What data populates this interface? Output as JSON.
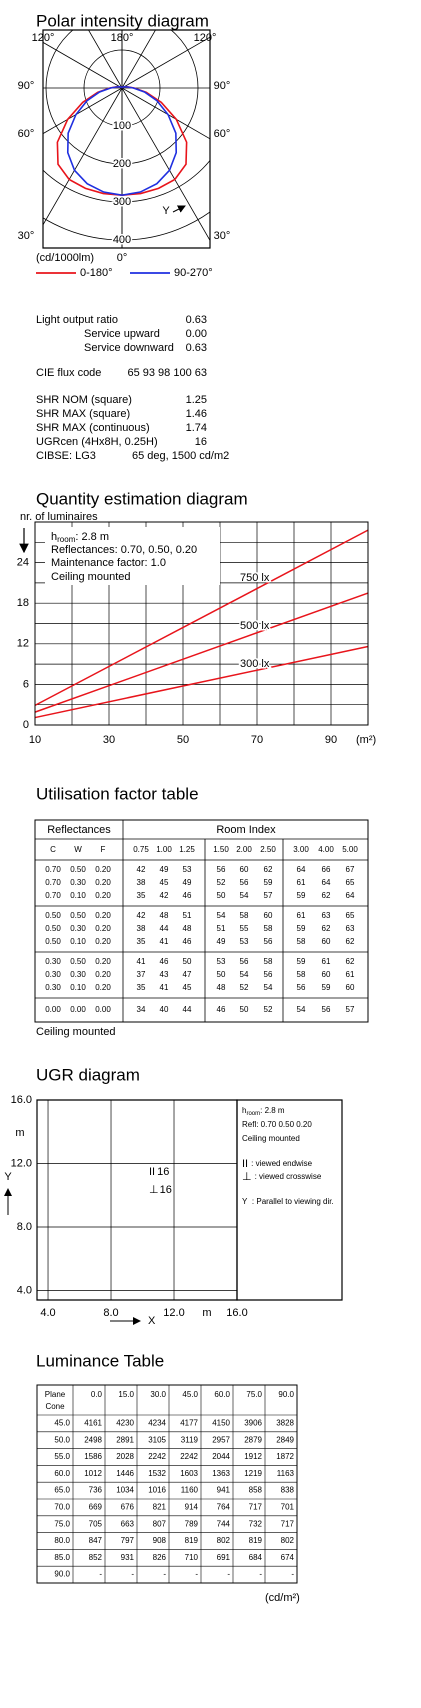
{
  "chart_data": [
    {
      "type": "polar",
      "title": "Polar intensity diagram",
      "angle_labels": [
        "120°",
        "180°",
        "120°",
        "90°",
        "90°",
        "60°",
        "60°",
        "30°",
        "30°",
        "0°"
      ],
      "unit": "(cd/1000lm)",
      "axis_marker": "Y",
      "rlim": [
        0,
        400
      ],
      "rticks": [
        100,
        200,
        300,
        400
      ],
      "angles": [
        0,
        10,
        20,
        30,
        40,
        50,
        60,
        70,
        80,
        90,
        100,
        110,
        120,
        130,
        140,
        150,
        160,
        170,
        180
      ],
      "series": [
        {
          "name": "0-180°",
          "color": "#e8141b",
          "values": [
            282,
            282,
            281,
            278,
            262,
            222,
            165,
            110,
            65,
            32,
            16,
            9,
            6,
            4,
            3,
            2,
            2,
            2,
            2
          ]
        },
        {
          "name": "90-270°",
          "color": "#1f2fe0",
          "values": [
            282,
            278,
            268,
            250,
            222,
            185,
            140,
            98,
            60,
            30,
            15,
            9,
            6,
            4,
            3,
            2,
            2,
            2,
            2
          ]
        }
      ]
    },
    {
      "type": "line",
      "title": "Quantity estimation diagram",
      "ylabel": "nr. of luminaires",
      "xunit": "(m²)",
      "room_height": {
        "symbol": "h",
        "subscript": "room",
        "text": ": 2.8 m"
      },
      "notes": [
        "Reflectances: 0.70, 0.50, 0.20",
        "Maintenance factor: 1.0",
        "Ceiling mounted"
      ],
      "x": [
        10,
        100
      ],
      "series": [
        {
          "name": "750 lx",
          "color": "#e8141b",
          "values": [
            2.9,
            28.8
          ]
        },
        {
          "name": "500 lx",
          "color": "#e8141b",
          "values": [
            1.9,
            19.5
          ]
        },
        {
          "name": "300 lx",
          "color": "#e8141b",
          "values": [
            1.1,
            11.6
          ]
        }
      ],
      "xlim": [
        10,
        100
      ],
      "xticks": [
        10,
        30,
        50,
        70,
        90
      ],
      "xgrid": [
        20,
        40,
        60,
        80,
        100
      ],
      "ylim": [
        0,
        30
      ],
      "yticks": [
        0,
        6,
        12,
        18,
        24
      ],
      "ygrid": [
        3,
        9,
        15,
        21,
        27,
        30
      ]
    },
    {
      "type": "grid",
      "title": "UGR diagram",
      "xlabel": "X",
      "ylabel": "Y",
      "xunit": "m",
      "yunit": "m",
      "xlim": [
        3.3,
        16
      ],
      "ylim": [
        3.4,
        16
      ],
      "xticks": [
        {
          "value": 4,
          "label": "4.0"
        },
        {
          "value": 8,
          "label": "8.0"
        },
        {
          "value": 12,
          "label": "12.0"
        },
        {
          "value": 16,
          "label": "16.0"
        }
      ],
      "yticks": [
        {
          "value": 16,
          "label": "16.0"
        },
        {
          "value": 12,
          "label": "12.0"
        },
        {
          "value": 8,
          "label": "8.0"
        },
        {
          "value": 4,
          "label": "4.0"
        }
      ],
      "values": [
        {
          "symbol": "II",
          "value": 16
        },
        {
          "symbol": "⊥",
          "value": 16
        }
      ],
      "room_height": {
        "symbol": "h",
        "subscript": "room",
        "text": ": 2.8 m"
      },
      "notes": [
        "Refl: 0.70 0.50 0.20",
        "Ceiling mounted"
      ],
      "legend": [
        {
          "symbol": "II",
          "text": ": viewed endwise"
        },
        {
          "symbol": "⊥",
          "text": ": viewed crosswise"
        },
        {
          "symbol": "Y",
          "text": ": Parallel to viewing dir."
        }
      ]
    }
  ],
  "specs": {
    "rows": [
      {
        "label": "Light output ratio",
        "value": "0.63"
      },
      {
        "label": "Service upward",
        "value": "0.00"
      },
      {
        "label": "Service downward",
        "value": "0.63"
      },
      {
        "label": "CIE flux code",
        "value": "65 93 98 100 63"
      },
      {
        "label": "SHR NOM (square)",
        "value": "1.25"
      },
      {
        "label": "SHR MAX (square)",
        "value": "1.46"
      },
      {
        "label": "SHR MAX (continuous)",
        "value": "1.74"
      },
      {
        "label": "UGRcen (4Hx8H, 0.25H)",
        "value": "16"
      },
      {
        "label": "CIBSE: LG3",
        "value": "65 deg, 1500 cd/m2"
      }
    ]
  },
  "utilisation_table": {
    "title": "Utilisation factor table",
    "reflectances_header": "Reflectances",
    "room_index_header": "Room Index",
    "reflectance_columns": [
      "C",
      "W",
      "F"
    ],
    "room_indices": [
      "0.75",
      "1.00",
      "1.25",
      "1.50",
      "2.00",
      "2.50",
      "3.00",
      "4.00",
      "5.00"
    ],
    "rows": [
      {
        "refl": [
          "0.70",
          "0.50",
          "0.20"
        ],
        "values": [
          42,
          49,
          53,
          56,
          60,
          62,
          64,
          66,
          67
        ]
      },
      {
        "refl": [
          "0.70",
          "0.30",
          "0.20"
        ],
        "values": [
          38,
          45,
          49,
          52,
          56,
          59,
          61,
          64,
          65
        ]
      },
      {
        "refl": [
          "0.70",
          "0.10",
          "0.20"
        ],
        "values": [
          35,
          42,
          46,
          50,
          54,
          57,
          59,
          62,
          64
        ]
      },
      {
        "refl": [
          "0.50",
          "0.50",
          "0.20"
        ],
        "values": [
          42,
          48,
          51,
          54,
          58,
          60,
          61,
          63,
          65
        ]
      },
      {
        "refl": [
          "0.50",
          "0.30",
          "0.20"
        ],
        "values": [
          38,
          44,
          48,
          51,
          55,
          58,
          59,
          62,
          63
        ]
      },
      {
        "refl": [
          "0.50",
          "0.10",
          "0.20"
        ],
        "values": [
          35,
          41,
          46,
          49,
          53,
          56,
          58,
          60,
          62
        ]
      },
      {
        "refl": [
          "0.30",
          "0.50",
          "0.20"
        ],
        "values": [
          41,
          46,
          50,
          53,
          56,
          58,
          59,
          61,
          62
        ]
      },
      {
        "refl": [
          "0.30",
          "0.30",
          "0.20"
        ],
        "values": [
          37,
          43,
          47,
          50,
          54,
          56,
          58,
          60,
          61
        ]
      },
      {
        "refl": [
          "0.30",
          "0.10",
          "0.20"
        ],
        "values": [
          35,
          41,
          45,
          48,
          52,
          54,
          56,
          59,
          60
        ]
      },
      {
        "refl": [
          "0.00",
          "0.00",
          "0.00"
        ],
        "values": [
          34,
          40,
          44,
          46,
          50,
          52,
          54,
          56,
          57
        ]
      }
    ],
    "footer": "Ceiling mounted"
  },
  "luminance_table": {
    "title": "Luminance Table",
    "corner": [
      "Plane",
      "Cone"
    ],
    "planes": [
      "0.0",
      "15.0",
      "30.0",
      "45.0",
      "60.0",
      "75.0",
      "90.0"
    ],
    "rows": [
      {
        "cone": "45.0",
        "values": [
          4161,
          4230,
          4234,
          4177,
          4150,
          3906,
          3828
        ]
      },
      {
        "cone": "50.0",
        "values": [
          2498,
          2891,
          3105,
          3119,
          2957,
          2879,
          2849
        ]
      },
      {
        "cone": "55.0",
        "values": [
          1586,
          2028,
          2242,
          2242,
          2044,
          1912,
          1872
        ]
      },
      {
        "cone": "60.0",
        "values": [
          1012,
          1446,
          1532,
          1603,
          1363,
          1219,
          1163
        ]
      },
      {
        "cone": "65.0",
        "values": [
          736,
          1034,
          1016,
          1160,
          941,
          858,
          838
        ]
      },
      {
        "cone": "70.0",
        "values": [
          669,
          676,
          821,
          914,
          764,
          717,
          701
        ]
      },
      {
        "cone": "75.0",
        "values": [
          705,
          663,
          807,
          789,
          744,
          732,
          717
        ]
      },
      {
        "cone": "80.0",
        "values": [
          847,
          797,
          908,
          819,
          802,
          819,
          802
        ]
      },
      {
        "cone": "85.0",
        "values": [
          852,
          931,
          826,
          710,
          691,
          684,
          674
        ]
      },
      {
        "cone": "90.0",
        "values": [
          "-",
          "-",
          "-",
          "-",
          "-",
          "-",
          "-"
        ]
      }
    ],
    "unit": "(cd/m²)"
  }
}
